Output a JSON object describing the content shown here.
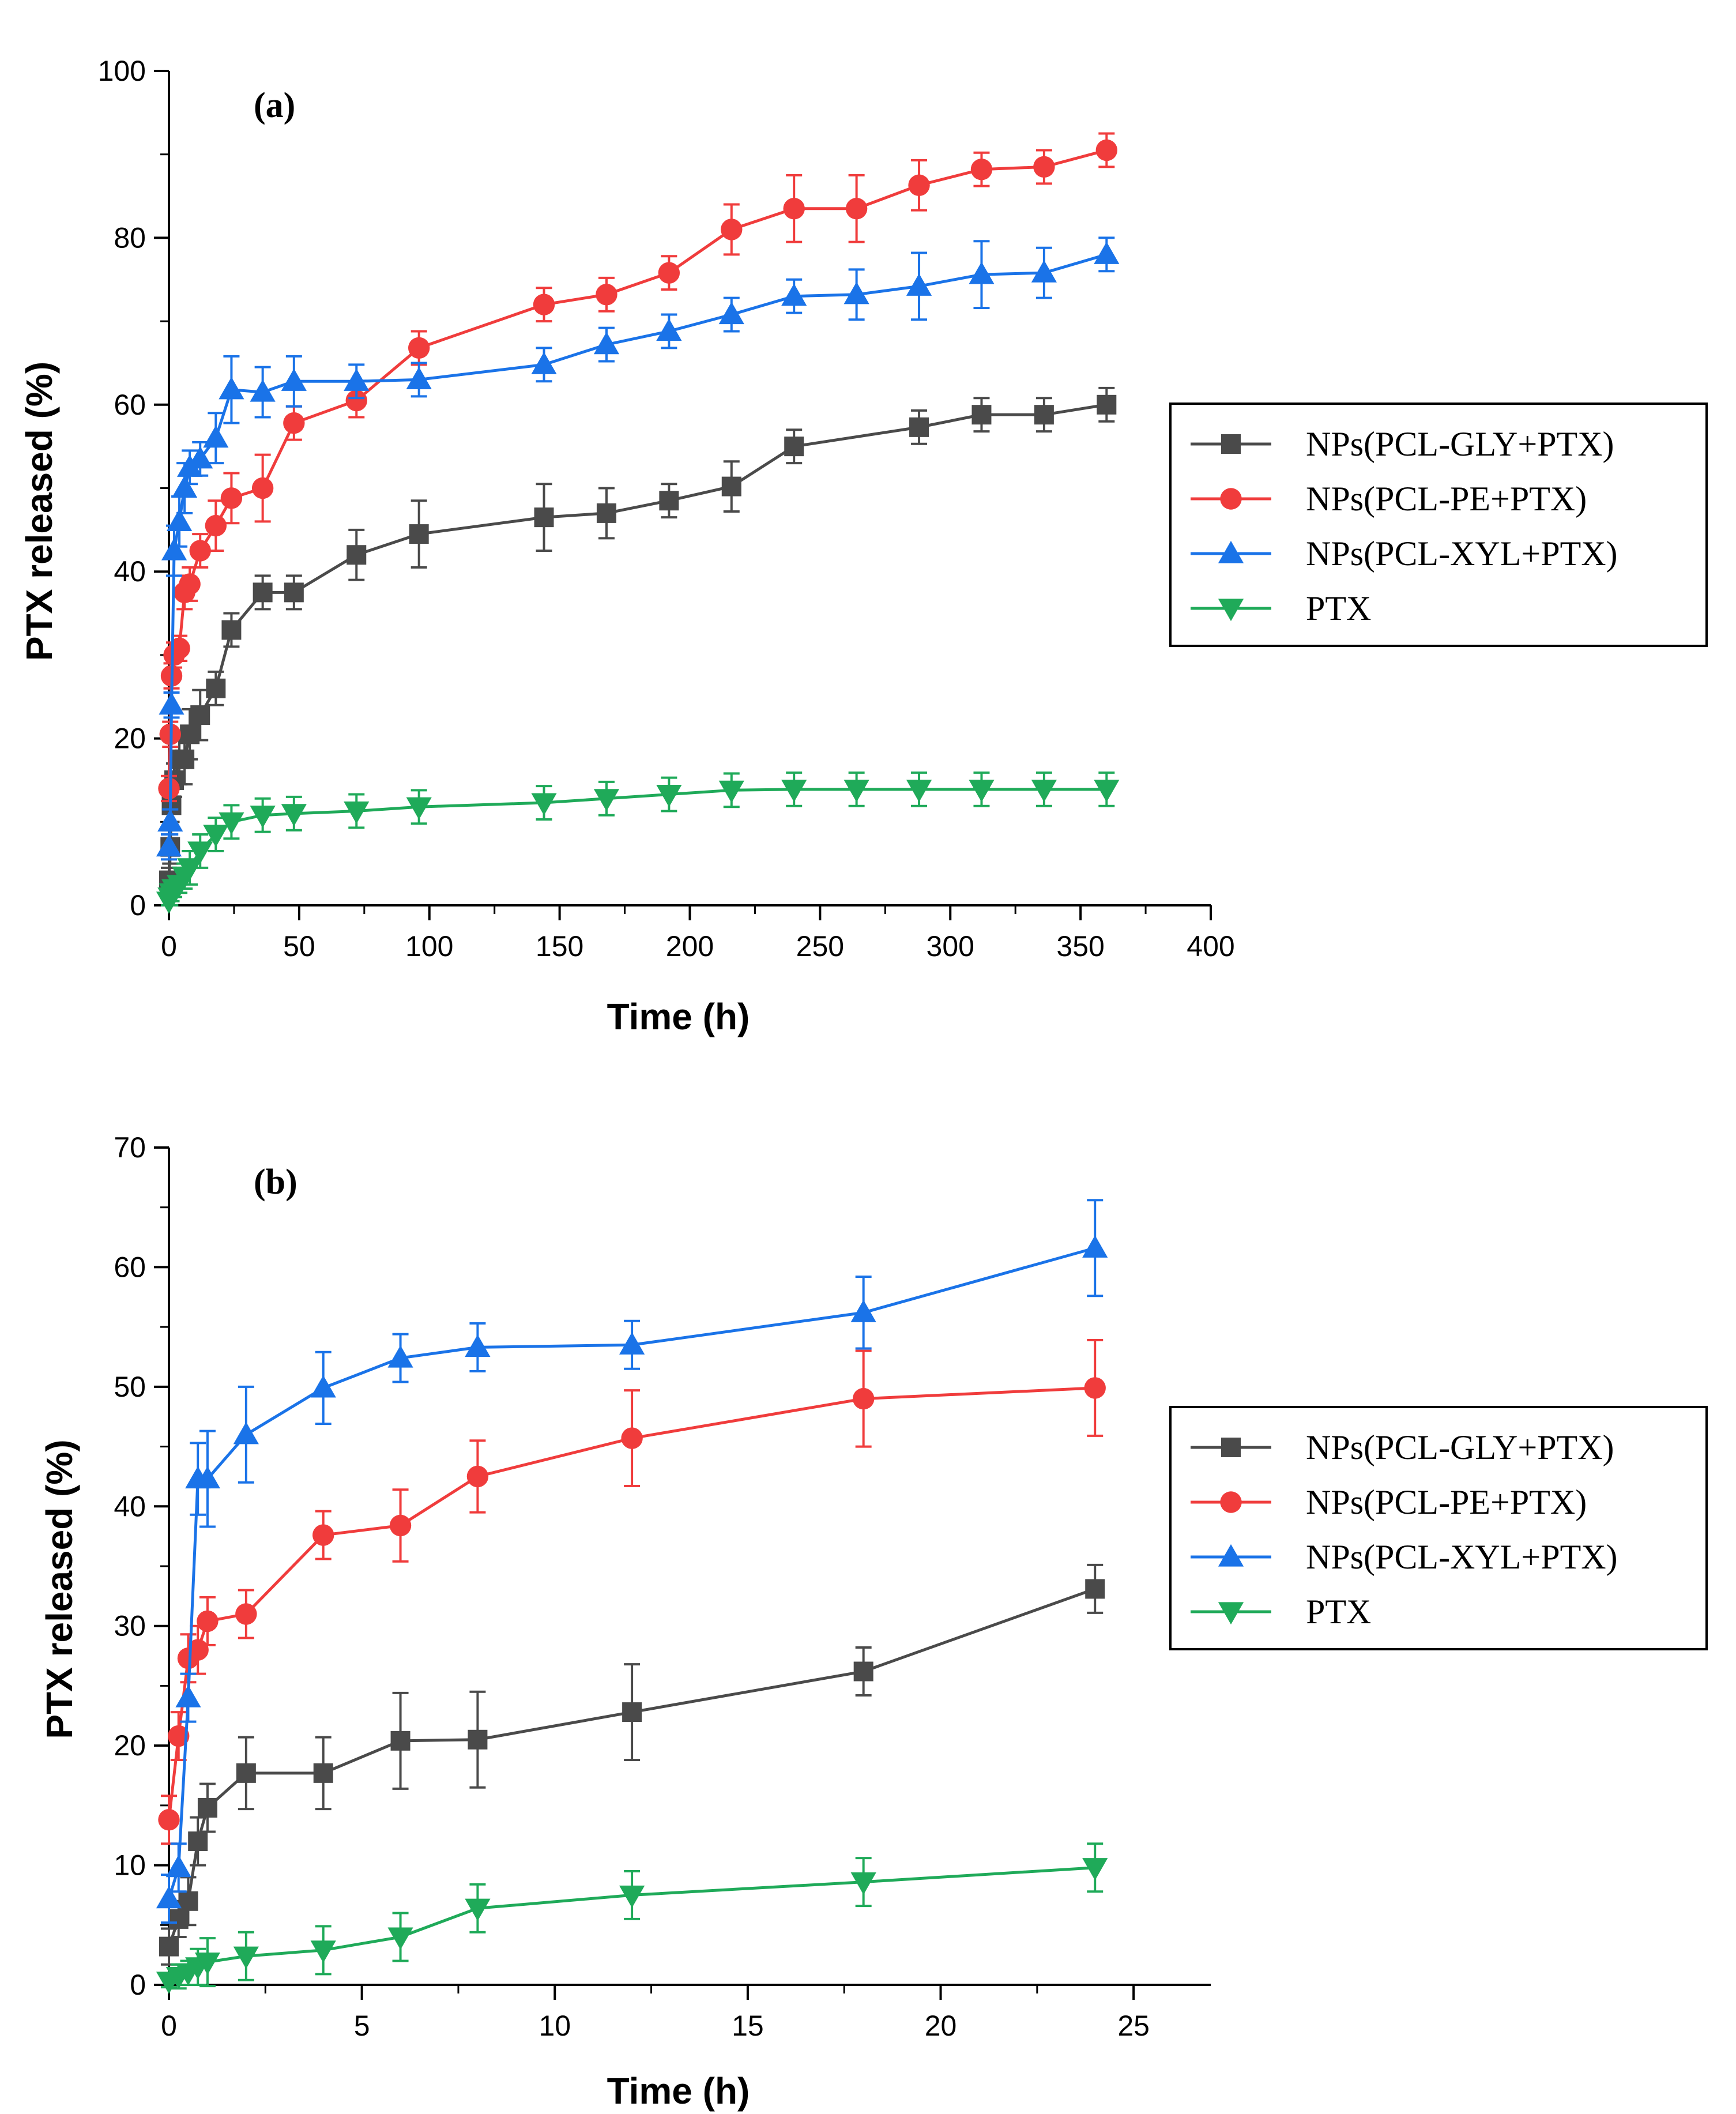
{
  "chart_data": [
    {
      "type": "line",
      "panel_label": "(a)",
      "xlabel": "Time (h)",
      "ylabel": "PTX released (%)",
      "xlim": [
        0,
        400
      ],
      "ylim": [
        0,
        100
      ],
      "x_ticks": [
        0,
        50,
        100,
        150,
        200,
        250,
        300,
        350,
        400
      ],
      "y_ticks": [
        0,
        20,
        40,
        60,
        80,
        100
      ],
      "legend_position": "right",
      "series": [
        {
          "name": "NPs(PCL-GLY+PTX)",
          "color": "#4a4a4a",
          "marker": "square",
          "x": [
            0,
            0.5,
            1,
            2,
            4,
            6,
            8,
            12,
            18,
            24,
            36,
            48,
            72,
            96,
            144,
            168,
            192,
            216,
            240,
            288,
            312,
            336,
            360
          ],
          "y": [
            3,
            7,
            12,
            15,
            17.5,
            17.5,
            20.5,
            22.8,
            26,
            33,
            37.5,
            37.5,
            42,
            44.5,
            46.5,
            47,
            48.5,
            50.2,
            55,
            57.3,
            58.8,
            58.8,
            60
          ],
          "err": [
            1.5,
            2,
            2,
            2,
            3,
            3,
            3,
            3,
            2,
            2,
            2,
            2,
            3,
            4,
            4,
            3,
            2,
            3,
            2,
            2,
            2,
            2,
            2
          ]
        },
        {
          "name": "NPs(PCL-PE+PTX)",
          "color": "#f03c3c",
          "marker": "circle",
          "x": [
            0,
            0.5,
            1,
            2,
            4,
            6,
            8,
            12,
            18,
            24,
            36,
            48,
            72,
            96,
            144,
            168,
            192,
            216,
            240,
            264,
            288,
            312,
            336,
            360
          ],
          "y": [
            14,
            20.5,
            27.5,
            30,
            30.8,
            37.5,
            38.5,
            42.5,
            45.5,
            48.8,
            50,
            57.8,
            60.5,
            66.8,
            72,
            73.2,
            75.8,
            81,
            83.5,
            83.5,
            86.3,
            88.2,
            88.5,
            90.5
          ],
          "err": [
            1.5,
            1.5,
            1.5,
            1.5,
            1.5,
            2,
            2,
            2,
            3,
            3,
            4,
            2,
            2,
            2,
            2,
            2,
            2,
            3,
            4,
            4,
            3,
            2,
            2,
            2
          ]
        },
        {
          "name": "NPs(PCL-XYL+PTX)",
          "color": "#1a73e8",
          "marker": "triangle-up",
          "x": [
            0,
            0.5,
            1,
            2,
            4,
            6,
            8,
            12,
            18,
            24,
            36,
            48,
            72,
            96,
            144,
            168,
            192,
            216,
            240,
            264,
            288,
            312,
            336,
            360
          ],
          "y": [
            7,
            10,
            24,
            42.5,
            46,
            50,
            52.5,
            53.5,
            56,
            61.8,
            61.5,
            62.8,
            62.8,
            63,
            64.8,
            67.2,
            68.8,
            70.8,
            73,
            73.2,
            74.2,
            75.6,
            75.8,
            78
          ],
          "err": [
            1.5,
            1.5,
            1.5,
            3,
            3,
            3,
            2,
            2,
            3,
            4,
            3,
            3,
            2,
            2,
            2,
            2,
            2,
            2,
            2,
            3,
            4,
            4,
            3,
            2
          ]
        },
        {
          "name": "PTX",
          "color": "#1faa59",
          "marker": "triangle-down",
          "x": [
            0,
            0.5,
            1,
            2,
            4,
            6,
            8,
            12,
            18,
            24,
            36,
            48,
            72,
            96,
            144,
            168,
            192,
            216,
            240,
            264,
            288,
            312,
            336,
            360
          ],
          "y": [
            0.5,
            1,
            1.5,
            2,
            2.5,
            3.5,
            4.5,
            6.5,
            8.5,
            10,
            10.8,
            11,
            11.3,
            11.8,
            12.3,
            12.8,
            13.3,
            13.8,
            13.9,
            13.9,
            13.9,
            13.9,
            13.9,
            13.9
          ],
          "err": [
            0.5,
            1,
            1,
            1,
            1,
            1.5,
            2,
            2,
            2,
            2,
            2,
            2,
            2,
            2,
            2,
            2,
            2,
            2,
            2,
            2,
            2,
            2,
            2,
            2
          ]
        }
      ]
    },
    {
      "type": "line",
      "panel_label": "(b)",
      "xlabel": "Time (h)",
      "ylabel": "PTX released (%)",
      "xlim": [
        0,
        27
      ],
      "ylim": [
        0,
        70
      ],
      "x_ticks": [
        0,
        5,
        10,
        15,
        20,
        25
      ],
      "y_ticks": [
        0,
        10,
        20,
        30,
        40,
        50,
        60,
        70
      ],
      "legend_position": "right",
      "series": [
        {
          "name": "NPs(PCL-GLY+PTX)",
          "color": "#4a4a4a",
          "marker": "square",
          "x": [
            0,
            0.25,
            0.5,
            0.75,
            1,
            2,
            4,
            6,
            8,
            12,
            18,
            24
          ],
          "y": [
            3.2,
            5.5,
            7,
            12,
            14.8,
            17.7,
            17.7,
            20.4,
            20.5,
            22.8,
            26.2,
            33.1
          ],
          "err": [
            1.5,
            1.5,
            2,
            2,
            2,
            3,
            3,
            4,
            4,
            4,
            2,
            2
          ]
        },
        {
          "name": "NPs(PCL-PE+PTX)",
          "color": "#f03c3c",
          "marker": "circle",
          "x": [
            0,
            0.25,
            0.5,
            0.75,
            1,
            2,
            4,
            6,
            8,
            12,
            18,
            24
          ],
          "y": [
            13.8,
            20.8,
            27.3,
            28,
            30.4,
            31,
            37.6,
            38.4,
            42.5,
            45.7,
            49,
            49.9
          ],
          "err": [
            2,
            2,
            2,
            2,
            2,
            2,
            2,
            3,
            3,
            4,
            4,
            4
          ]
        },
        {
          "name": "NPs(PCL-XYL+PTX)",
          "color": "#1a73e8",
          "marker": "triangle-up",
          "x": [
            0,
            0.25,
            0.5,
            0.75,
            1,
            2,
            4,
            6,
            8,
            12,
            18,
            24
          ],
          "y": [
            7.2,
            9.8,
            24,
            42.3,
            42.3,
            46,
            49.9,
            52.4,
            53.3,
            53.5,
            56.2,
            61.6
          ],
          "err": [
            2,
            2,
            2,
            3,
            4,
            4,
            3,
            2,
            2,
            2,
            3,
            4
          ]
        },
        {
          "name": "PTX",
          "color": "#1faa59",
          "marker": "triangle-down",
          "x": [
            0,
            0.25,
            0.5,
            0.75,
            1,
            2,
            4,
            6,
            8,
            12,
            18,
            24
          ],
          "y": [
            0.3,
            0.7,
            1,
            1.5,
            1.9,
            2.4,
            2.9,
            4,
            6.4,
            7.5,
            8.6,
            9.8
          ],
          "err": [
            0.5,
            1,
            1,
            1.5,
            2,
            2,
            2,
            2,
            2,
            2,
            2,
            2
          ]
        }
      ]
    }
  ]
}
